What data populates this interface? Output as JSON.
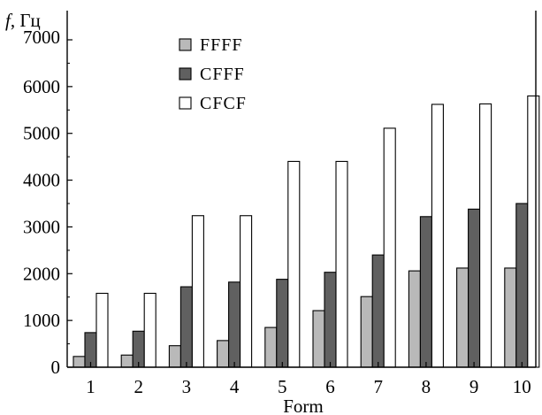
{
  "chart_data": {
    "type": "bar",
    "xlabel": "Form",
    "ylabel": "f, Гц",
    "ylabel_italic_part": "f",
    "ylabel_rest": ", Гц",
    "categories": [
      "1",
      "2",
      "3",
      "4",
      "5",
      "6",
      "7",
      "8",
      "9",
      "10"
    ],
    "ylim": [
      0,
      7000
    ],
    "yticks": [
      0,
      1000,
      2000,
      3000,
      4000,
      5000,
      6000,
      7000
    ],
    "grid": false,
    "legend_position": "top-left",
    "series": [
      {
        "name": "FFFF",
        "color": "#b9b9b9",
        "values": [
          230,
          260,
          460,
          570,
          850,
          1210,
          1510,
          2060,
          2120,
          2120
        ]
      },
      {
        "name": "CFFF",
        "color": "#606060",
        "values": [
          740,
          770,
          1720,
          1820,
          1880,
          2030,
          2400,
          3220,
          3380,
          3500
        ]
      },
      {
        "name": "CFCF",
        "color": "#ffffff",
        "values": [
          1580,
          1580,
          3240,
          3240,
          4400,
          4400,
          5110,
          5620,
          5630,
          5800
        ]
      }
    ]
  }
}
